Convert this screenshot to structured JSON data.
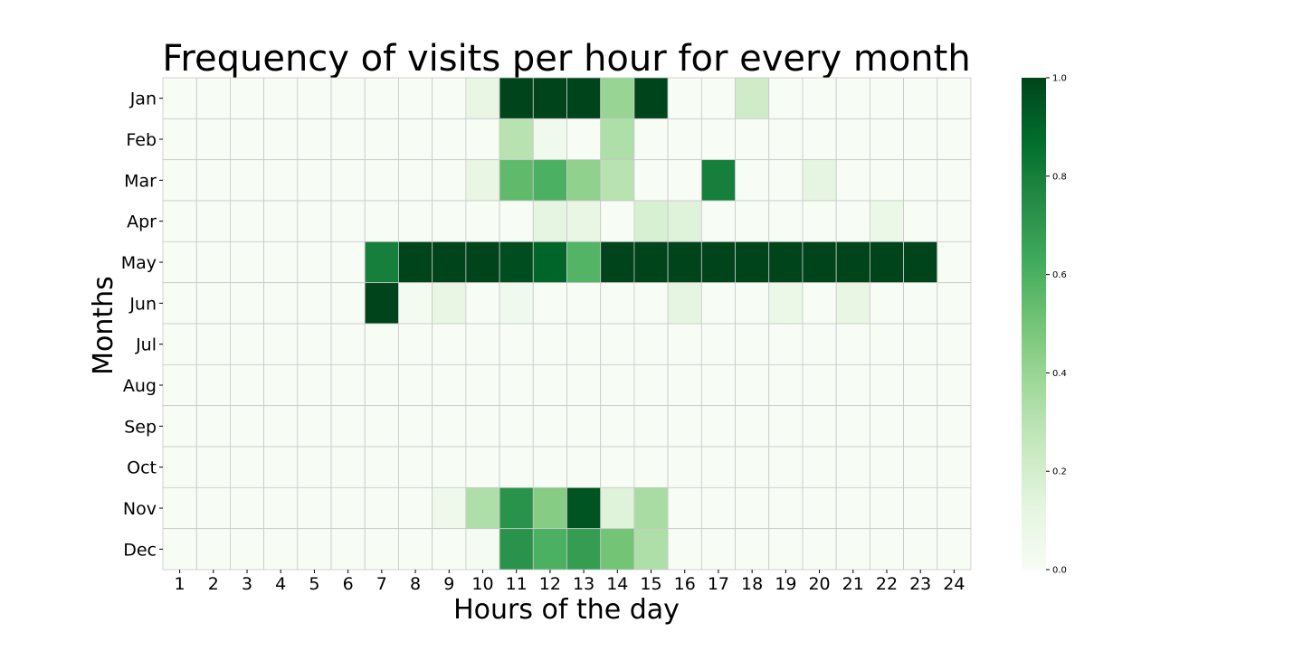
{
  "chart_data": {
    "type": "heatmap",
    "title": "Frequency of visits per hour for every month",
    "xlabel": "Hours of the day",
    "ylabel": "Months",
    "x": [
      "1",
      "2",
      "3",
      "4",
      "5",
      "6",
      "7",
      "8",
      "9",
      "10",
      "11",
      "12",
      "13",
      "14",
      "15",
      "16",
      "17",
      "18",
      "19",
      "20",
      "21",
      "22",
      "23",
      "24"
    ],
    "y": [
      "Jan",
      "Feb",
      "Mar",
      "Apr",
      "May",
      "Jun",
      "Jul",
      "Aug",
      "Sep",
      "Oct",
      "Nov",
      "Dec"
    ],
    "values": [
      [
        0,
        0,
        0,
        0,
        0,
        0,
        0,
        0,
        0,
        0.1,
        1.0,
        1.0,
        1.0,
        0.4,
        1.0,
        0,
        0,
        0.22,
        0,
        0,
        0,
        0,
        0,
        0
      ],
      [
        0,
        0,
        0,
        0,
        0,
        0,
        0,
        0,
        0,
        0,
        0.3,
        0.05,
        0,
        0.33,
        0,
        0,
        0,
        0,
        0,
        0,
        0,
        0,
        0,
        0
      ],
      [
        0,
        0,
        0,
        0,
        0,
        0,
        0,
        0,
        0,
        0.1,
        0.55,
        0.6,
        0.42,
        0.3,
        0,
        0,
        0.8,
        0,
        0,
        0.12,
        0,
        0,
        0,
        0
      ],
      [
        0,
        0,
        0,
        0,
        0,
        0,
        0,
        0,
        0,
        0,
        0,
        0.12,
        0.1,
        0,
        0.18,
        0.15,
        0,
        0,
        0,
        0,
        0,
        0.08,
        0,
        0
      ],
      [
        0,
        0,
        0,
        0,
        0,
        0,
        0.8,
        1.0,
        1.0,
        1.0,
        0.97,
        0.9,
        0.58,
        1.0,
        1.0,
        1.0,
        1.0,
        1.0,
        1.0,
        1.0,
        1.0,
        1.0,
        1.0,
        0
      ],
      [
        0,
        0,
        0,
        0,
        0,
        0,
        1.0,
        0.03,
        0.1,
        0,
        0.05,
        0,
        0,
        0,
        0,
        0.12,
        0,
        0,
        0.08,
        0,
        0.1,
        0,
        0,
        0
      ],
      [
        0,
        0,
        0,
        0,
        0,
        0,
        0,
        0,
        0,
        0,
        0,
        0,
        0,
        0,
        0,
        0,
        0,
        0,
        0,
        0,
        0,
        0,
        0,
        0
      ],
      [
        0,
        0,
        0,
        0,
        0,
        0,
        0,
        0,
        0,
        0,
        0,
        0,
        0,
        0,
        0,
        0,
        0,
        0,
        0,
        0,
        0,
        0,
        0,
        0
      ],
      [
        0,
        0,
        0,
        0,
        0,
        0,
        0,
        0,
        0,
        0,
        0,
        0,
        0,
        0,
        0,
        0,
        0,
        0,
        0,
        0,
        0,
        0,
        0,
        0
      ],
      [
        0,
        0,
        0,
        0,
        0,
        0,
        0,
        0,
        0,
        0,
        0,
        0,
        0,
        0,
        0,
        0,
        0,
        0,
        0,
        0,
        0,
        0,
        0,
        0
      ],
      [
        0,
        0,
        0,
        0,
        0,
        0,
        0,
        0,
        0.06,
        0.33,
        0.72,
        0.45,
        0.95,
        0.15,
        0.35,
        0,
        0,
        0,
        0,
        0,
        0,
        0,
        0,
        0
      ],
      [
        0,
        0,
        0,
        0,
        0,
        0,
        0,
        0,
        0,
        0.02,
        0.72,
        0.6,
        0.68,
        0.5,
        0.33,
        0,
        0,
        0,
        0,
        0,
        0,
        0,
        0,
        0
      ]
    ],
    "colorbar": {
      "min": 0.0,
      "max": 1.0,
      "ticks": [
        "0.0",
        "0.2",
        "0.4",
        "0.6",
        "0.8",
        "1.0"
      ]
    },
    "colormap": "Greens",
    "grid": true
  }
}
